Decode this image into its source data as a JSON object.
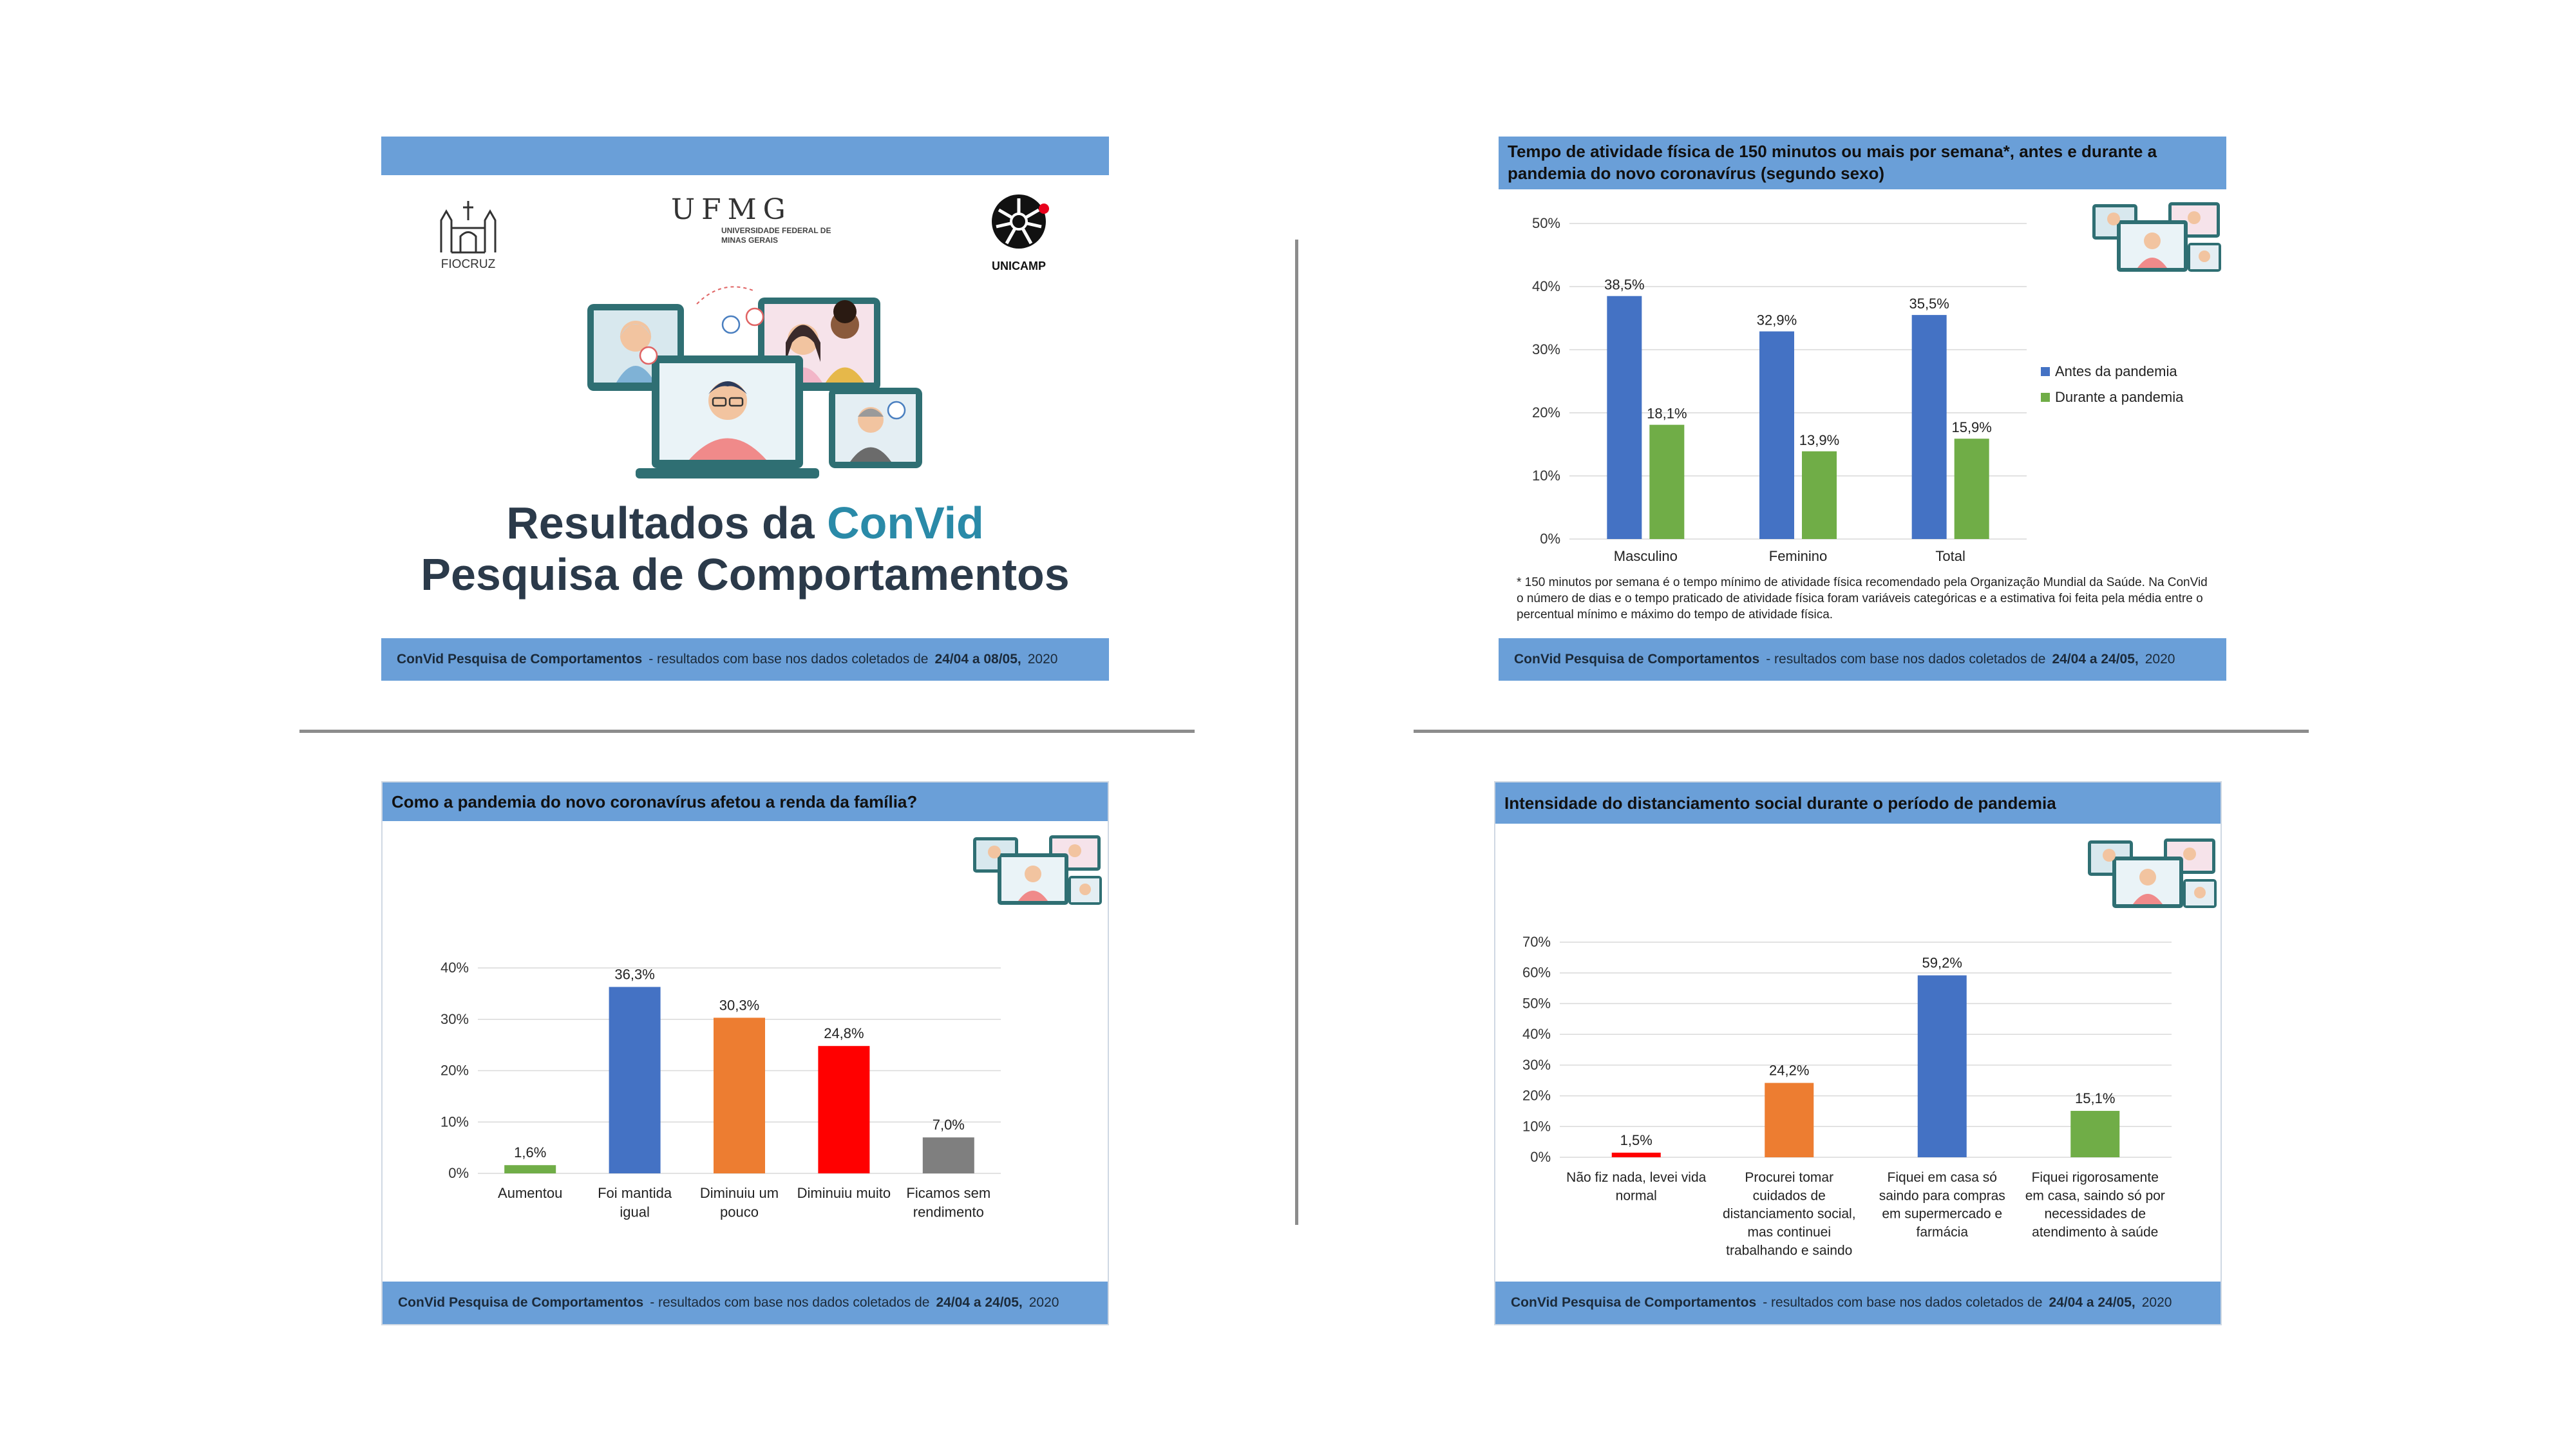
{
  "slide1": {
    "logos": {
      "fiocruz": "FIOCRUZ",
      "ufmg": "UFMG",
      "ufmg_sub": "UNIVERSIDADE FEDERAL DE MINAS GERAIS",
      "unicamp": "UNICAMP"
    },
    "title_part1": "Resultados da ",
    "title_part2": "ConVid",
    "title_line2": "Pesquisa de Comportamentos",
    "footer_bold": "ConVid Pesquisa de Comportamentos",
    "footer_text": "- resultados com base nos dados coletados de",
    "footer_dates": "24/04 a 08/05,",
    "footer_year": "2020"
  },
  "slide2": {
    "header": "Tempo de atividade física de 150 minutos ou mais por semana*, antes e durante a pandemia do novo coronavírus (segundo sexo)",
    "note": "* 150 minutos por semana é o tempo mínimo de atividade física recomendado pela Organização Mundial da Saúde. Na ConVid o número de dias e o tempo praticado de atividade física foram variáveis categóricas e a estimativa foi feita pela média entre o percentual mínimo e máximo do tempo de atividade física.",
    "footer_bold": "ConVid Pesquisa de Comportamentos",
    "footer_text": "- resultados com base nos dados coletados de",
    "footer_dates": "24/04 a 24/05,",
    "footer_year": "2020"
  },
  "slide3": {
    "header": "Como a pandemia do novo coronavírus afetou a renda da família?",
    "footer_bold": "ConVid Pesquisa de Comportamentos",
    "footer_text": "- resultados com base nos dados coletados de",
    "footer_dates": "24/04 a 24/05,",
    "footer_year": "2020"
  },
  "slide4": {
    "header": "Intensidade do distanciamento social durante o período de pandemia",
    "footer_bold": "ConVid Pesquisa de Comportamentos",
    "footer_text": "- resultados com base nos dados coletados de",
    "footer_dates": "24/04 a 24/05,",
    "footer_year": "2020"
  },
  "chart_data": [
    {
      "type": "bar",
      "categories": [
        "Masculino",
        "Feminino",
        "Total"
      ],
      "series": [
        {
          "name": "Antes da pandemia",
          "values": [
            38.5,
            32.9,
            35.5
          ],
          "labels": [
            "38,5%",
            "32,9%",
            "35,5%"
          ],
          "color": "#4472c4"
        },
        {
          "name": "Durante a pandemia",
          "values": [
            18.1,
            13.9,
            15.9
          ],
          "labels": [
            "18,1%",
            "13,9%",
            "15,9%"
          ],
          "color": "#70ad47"
        }
      ],
      "yticks": [
        "0%",
        "10%",
        "20%",
        "30%",
        "40%",
        "50%"
      ],
      "ylim": [
        0,
        50
      ],
      "grid": true,
      "legend": "right"
    },
    {
      "type": "bar",
      "categories": [
        [
          "Aumentou"
        ],
        [
          "Foi mantida",
          "igual"
        ],
        [
          "Diminuiu um",
          "pouco"
        ],
        [
          "Diminuiu muito"
        ],
        [
          "Ficamos sem",
          "rendimento"
        ]
      ],
      "values": [
        1.6,
        36.3,
        30.3,
        24.8,
        7.0
      ],
      "labels": [
        "1,6%",
        "36,3%",
        "30,3%",
        "24,8%",
        "7,0%"
      ],
      "colors": [
        "#70ad47",
        "#4472c4",
        "#ed7d31",
        "#ff0000",
        "#7f7f7f"
      ],
      "yticks": [
        "0%",
        "10%",
        "20%",
        "30%",
        "40%"
      ],
      "ylim": [
        0,
        40
      ],
      "grid": true
    },
    {
      "type": "bar",
      "categories": [
        [
          "Não fiz nada, levei vida",
          "normal"
        ],
        [
          "Procurei tomar",
          "cuidados de",
          "distanciamento social,",
          "mas continuei",
          "trabalhando e saindo"
        ],
        [
          "Fiquei em casa só",
          "saindo para compras",
          "em supermercado e",
          "farmácia"
        ],
        [
          "Fiquei rigorosamente",
          "em casa, saindo só por",
          "necessidades de",
          "atendimento à saúde"
        ]
      ],
      "values": [
        1.5,
        24.2,
        59.2,
        15.1
      ],
      "labels": [
        "1,5%",
        "24,2%",
        "59,2%",
        "15,1%"
      ],
      "colors": [
        "#ff0000",
        "#ed7d31",
        "#4472c4",
        "#70ad47"
      ],
      "yticks": [
        "0%",
        "10%",
        "20%",
        "30%",
        "40%",
        "50%",
        "60%",
        "70%"
      ],
      "ylim": [
        0,
        70
      ],
      "grid": true
    }
  ]
}
